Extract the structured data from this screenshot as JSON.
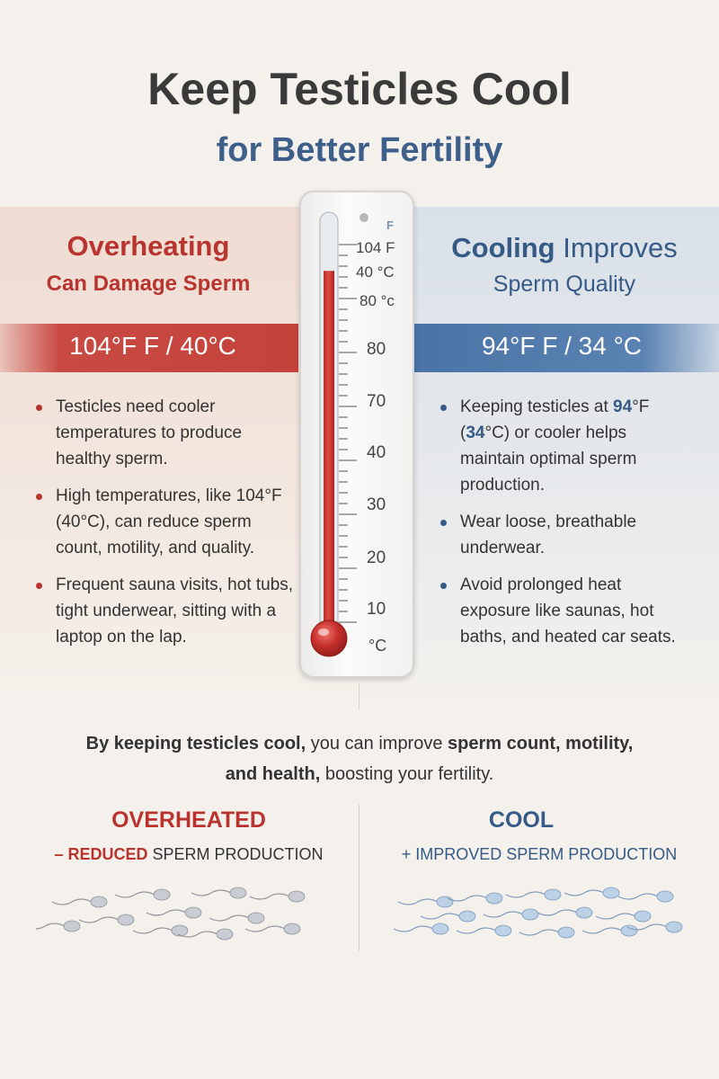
{
  "title": "Keep Testicles Cool",
  "subtitle": {
    "pre": "for Better ",
    "bold": "Fertility"
  },
  "left": {
    "heading_line1": "Overheating",
    "heading_line2": "Can Damage Sperm",
    "banner": "104°F F / 40°C",
    "bullets": [
      "Testicles need cooler temperatures to produce healthy sperm.",
      "High temperatures, like 104°F (40°C), can reduce sperm count, motility, and quality.",
      "Frequent sauna visits, hot tubs, tight underwear, sitting with a laptop on the lap."
    ]
  },
  "right": {
    "heading_bold": "Cooling",
    "heading_rest": " Improves",
    "heading_line2": "Sperm Quality",
    "banner": "94°F F / 34 °C",
    "bullets": {
      "b1_pre": "Keeping testicles at ",
      "b1_hl1": "94",
      "b1_mid1": "°F (",
      "b1_hl2": "34",
      "b1_post": "°C) or cooler helps maintain optimal sperm production.",
      "b2": "Wear loose, breathable underwear.",
      "b3": "Avoid prolonged heat exposure like saunas, hot baths, and heated car seats."
    }
  },
  "thermometer": {
    "unit_top": "F",
    "top_labels": [
      "104 F",
      "40 °C",
      "80 °c"
    ],
    "scale_labels": [
      "80",
      "70",
      "40",
      "30",
      "20",
      "10"
    ],
    "unit_bottom": "°C",
    "fill_level": 0.87,
    "fill_color": "#c8302c"
  },
  "conclusion": {
    "b1": "By keeping testicles cool,",
    "t1": " you can improve ",
    "b2": "sperm count, motility,",
    "b3": "and health,",
    "t2": " boosting your fertility."
  },
  "bottom_left": {
    "title": "OVERHEATED",
    "sub_bold": "– REDUCED",
    "sub_rest": " SPERM PRODUCTION"
  },
  "bottom_right": {
    "title": "COOL",
    "sub": "+ IMPROVED SPERM PRODUCTION"
  },
  "colors": {
    "red": "#b9332f",
    "blue": "#355a86",
    "background": "#f4f1ec"
  }
}
